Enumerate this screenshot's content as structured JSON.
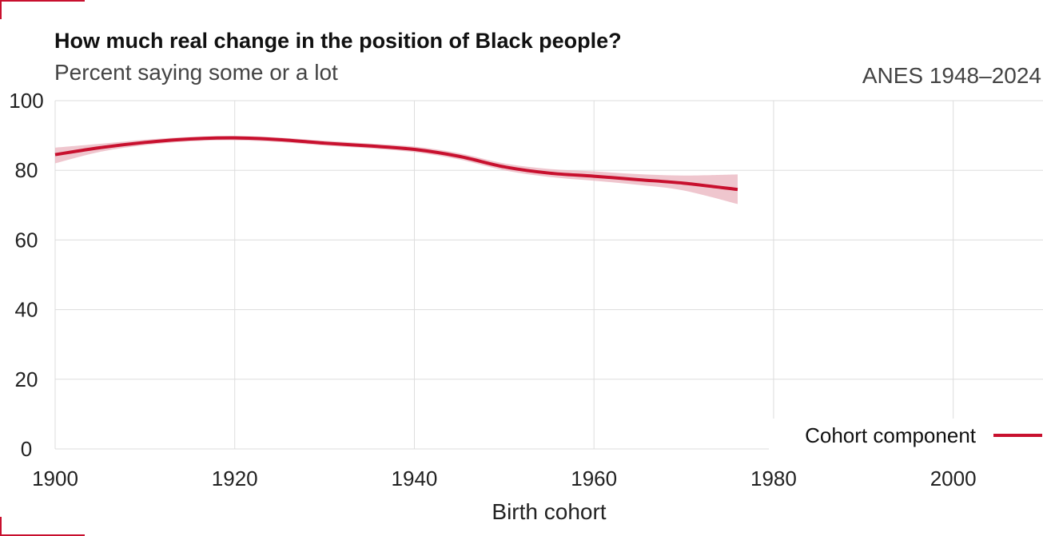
{
  "header": {
    "title": "How much real change in the position of Black people?",
    "subtitle": "Percent saying some or a lot",
    "source": "ANES 1948–2024"
  },
  "colors": {
    "line": "#c8102e",
    "band": "#eab3bd",
    "grid": "#dddddd",
    "corner_marks": "#c8102e"
  },
  "chart_data": {
    "type": "line",
    "title": "How much real change in the position of Black people?",
    "subtitle": "Percent saying some or a lot",
    "xlabel": "Birth cohort",
    "ylabel": "",
    "xlim": [
      1900,
      2010
    ],
    "ylim": [
      0,
      100
    ],
    "x_ticks": [
      1900,
      1920,
      1940,
      1960,
      1980,
      2000
    ],
    "y_ticks": [
      0,
      20,
      40,
      60,
      80,
      100
    ],
    "grid": true,
    "legend_position": "bottom-right",
    "series": [
      {
        "name": "Cohort component",
        "x": [
          1900,
          1905,
          1910,
          1915,
          1920,
          1925,
          1930,
          1935,
          1940,
          1945,
          1950,
          1955,
          1960,
          1965,
          1970,
          1976
        ],
        "y": [
          84.5,
          86.5,
          88.0,
          89.0,
          89.3,
          88.8,
          87.8,
          87.0,
          86.0,
          84.0,
          81.0,
          79.2,
          78.3,
          77.3,
          76.3,
          74.5
        ],
        "lower": [
          82.0,
          85.3,
          87.2,
          88.3,
          88.6,
          88.1,
          87.1,
          86.3,
          85.2,
          83.1,
          80.0,
          78.1,
          77.0,
          75.8,
          74.2,
          70.3
        ],
        "upper": [
          86.5,
          87.6,
          88.8,
          89.6,
          89.9,
          89.4,
          88.5,
          87.7,
          86.8,
          84.9,
          82.0,
          80.4,
          79.7,
          78.9,
          78.5,
          78.8
        ]
      }
    ]
  }
}
